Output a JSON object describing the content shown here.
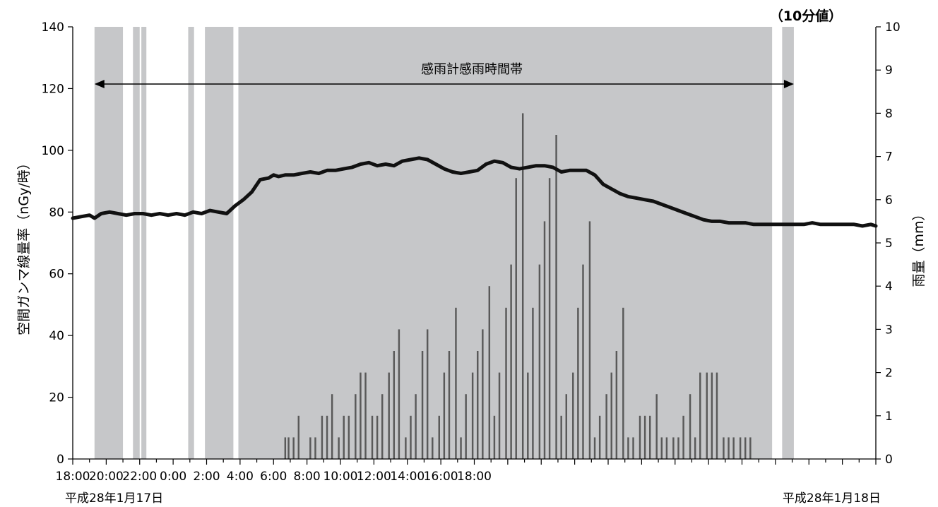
{
  "chart_data": {
    "type": "bar+line",
    "title": "",
    "unit_note": "（10分値）",
    "annotation": "感雨計感雨時間帯",
    "ylabel_left": "空間ガンマ線量率（nGy/時）",
    "ylabel_right": "雨量（mm）",
    "ylim_left": [
      0,
      140
    ],
    "ylim_right": [
      0,
      10
    ],
    "yticks_left": [
      "0",
      "20",
      "40",
      "60",
      "80",
      "100",
      "120",
      "140"
    ],
    "yticks_right": [
      "0",
      "1",
      "2",
      "3",
      "4",
      "5",
      "6",
      "7",
      "8",
      "9",
      "10"
    ],
    "x_start_hour": 18,
    "x_end_hour": 66,
    "xticks": [
      "18:00",
      "20:00",
      "22:00",
      "0:00",
      "2:00",
      "4:00",
      "6:00",
      "8:00",
      "10:00",
      "12:00",
      "14:00",
      "16:00",
      "18:00"
    ],
    "date_start": "平成28年1月17日",
    "date_end": "平成28年1月18日",
    "rain_bands": [
      [
        19.3,
        21.0
      ],
      [
        21.6,
        22.0
      ],
      [
        22.1,
        22.4
      ],
      [
        24.9,
        25.25
      ],
      [
        25.9,
        27.6
      ],
      [
        27.9,
        59.8
      ],
      [
        60.4,
        61.1
      ]
    ],
    "arrow_range": [
      19.3,
      61.1
    ],
    "dose_rate": {
      "name": "空間ガンマ線量率",
      "x": [
        18.0,
        18.5,
        19.0,
        19.3,
        19.7,
        20.2,
        20.7,
        21.2,
        21.7,
        22.2,
        22.7,
        23.2,
        23.7,
        24.2,
        24.7,
        25.2,
        25.7,
        26.2,
        26.7,
        27.2,
        27.7,
        28.2,
        28.7,
        29.2,
        29.7,
        30.0,
        30.3,
        30.7,
        31.2,
        31.7,
        32.2,
        32.7,
        33.2,
        33.7,
        34.2,
        34.7,
        35.2,
        35.7,
        36.2,
        36.7,
        37.2,
        37.7,
        38.2,
        38.7,
        39.2,
        39.7,
        40.2,
        40.7,
        41.2,
        41.7,
        42.2,
        42.7,
        43.2,
        43.7,
        44.2,
        44.7,
        45.2,
        45.7,
        46.2,
        46.7,
        47.2,
        47.7,
        48.2,
        48.7,
        49.2,
        49.7,
        50.2,
        50.7,
        51.2,
        51.7,
        52.2,
        52.7,
        53.2,
        53.7,
        54.2,
        54.7,
        55.2,
        55.7,
        56.2,
        56.7,
        57.2,
        57.7,
        58.2,
        58.7,
        59.2,
        59.7,
        60.2,
        60.7,
        61.2,
        61.7,
        62.2,
        62.7,
        63.2,
        63.7,
        64.2,
        64.7,
        65.2,
        65.7,
        66.0
      ],
      "values": [
        78,
        78.5,
        79,
        78,
        79.5,
        80,
        79.5,
        79,
        79.5,
        79.5,
        79,
        79.5,
        79,
        79.5,
        79,
        80,
        79.5,
        80.5,
        80,
        79.5,
        82,
        84,
        86.5,
        90.5,
        91,
        92,
        91.5,
        92,
        92,
        92.5,
        93,
        92.5,
        93.5,
        93.5,
        94,
        94.5,
        95.5,
        96,
        95,
        95.5,
        95,
        96.5,
        97,
        97.5,
        97,
        95.5,
        94,
        93,
        92.5,
        93,
        93.5,
        95.5,
        96.5,
        96,
        94.5,
        94,
        94.5,
        95,
        95,
        94.5,
        93,
        93.5,
        93.5,
        93.5,
        92,
        89,
        87.5,
        86,
        85,
        84.5,
        84,
        83.5,
        82.5,
        81.5,
        80.5,
        79.5,
        78.5,
        77.5,
        77,
        77,
        76.5,
        76.5,
        76.5,
        76,
        76,
        76,
        76,
        76,
        76,
        76,
        76.5,
        76,
        76,
        76,
        76,
        76,
        75.5,
        76,
        75.5
      ]
    },
    "rainfall": {
      "name": "雨量",
      "x": [
        30.7,
        30.9,
        31.2,
        31.5,
        32.2,
        32.5,
        32.9,
        33.2,
        33.5,
        33.9,
        34.2,
        34.5,
        34.9,
        35.2,
        35.5,
        35.9,
        36.2,
        36.5,
        36.9,
        37.2,
        37.5,
        37.9,
        38.2,
        38.5,
        38.9,
        39.2,
        39.5,
        39.9,
        40.2,
        40.5,
        40.9,
        41.2,
        41.5,
        41.9,
        42.2,
        42.5,
        42.9,
        43.2,
        43.5,
        43.9,
        44.2,
        44.5,
        44.9,
        45.2,
        45.5,
        45.9,
        46.2,
        46.5,
        46.9,
        47.2,
        47.5,
        47.9,
        48.2,
        48.5,
        48.9,
        49.2,
        49.5,
        49.9,
        50.2,
        50.5,
        50.9,
        51.2,
        51.5,
        51.9,
        52.2,
        52.5,
        52.9,
        53.2,
        53.5,
        53.9,
        54.2,
        54.5,
        54.9,
        55.2,
        55.5,
        55.9,
        56.2,
        56.5,
        56.9,
        57.2,
        57.5,
        57.9,
        58.2,
        58.5
      ],
      "values": [
        0.5,
        0.5,
        0.5,
        1,
        0.5,
        0.5,
        1,
        1,
        1.5,
        0.5,
        1,
        1,
        1.5,
        2,
        2,
        1,
        1,
        1.5,
        2,
        2.5,
        3,
        0.5,
        1,
        1.5,
        2.5,
        3,
        0.5,
        1,
        2,
        2.5,
        3.5,
        0.5,
        1.5,
        2,
        2.5,
        3,
        4,
        1,
        2,
        3.5,
        4.5,
        6.5,
        8,
        2,
        3.5,
        4.5,
        5.5,
        6.5,
        7.5,
        1,
        1.5,
        2,
        3.5,
        4.5,
        5.5,
        0.5,
        1,
        1.5,
        2,
        2.5,
        3.5,
        0.5,
        0.5,
        1,
        1,
        1,
        1.5,
        0.5,
        0.5,
        0.5,
        0.5,
        1,
        1.5,
        0.5,
        2,
        2,
        2,
        2,
        0.5,
        0.5,
        0.5,
        0.5,
        0.5,
        0.5
      ]
    }
  }
}
